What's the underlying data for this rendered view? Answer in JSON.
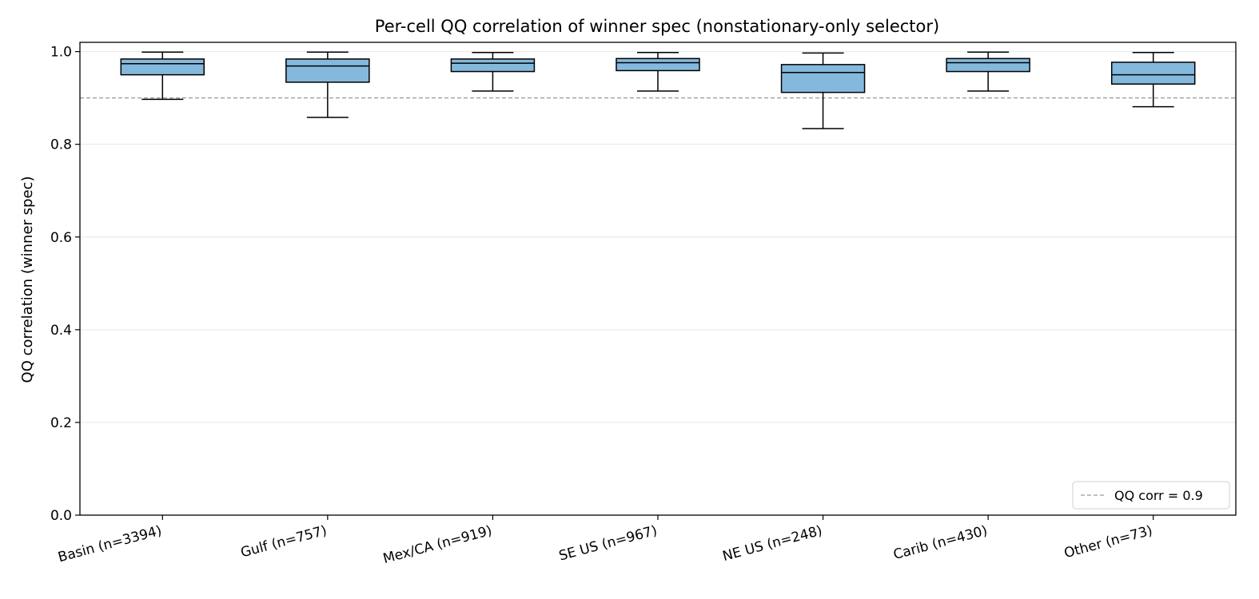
{
  "chart_data": {
    "type": "box",
    "title": "Per-cell QQ correlation of winner spec (nonstationary-only selector)",
    "xlabel": "",
    "ylabel": "QQ correlation (winner spec)",
    "ylim": [
      0.0,
      1.02
    ],
    "yticks": [
      0.0,
      0.2,
      0.4,
      0.6,
      0.8,
      1.0
    ],
    "ytick_labels": [
      "0.0",
      "0.2",
      "0.4",
      "0.6",
      "0.8",
      "1.0"
    ],
    "grid": "horizontal",
    "categories": [
      "Basin (n=3394)",
      "Gulf (n=757)",
      "Mex/CA (n=919)",
      "SE US (n=967)",
      "NE US (n=248)",
      "Carib (n=430)",
      "Other (n=73)"
    ],
    "boxes": [
      {
        "whisker_low": 0.897,
        "q1": 0.95,
        "median": 0.974,
        "q3": 0.984,
        "whisker_high": 0.999
      },
      {
        "whisker_low": 0.858,
        "q1": 0.934,
        "median": 0.969,
        "q3": 0.984,
        "whisker_high": 0.999
      },
      {
        "whisker_low": 0.915,
        "q1": 0.957,
        "median": 0.975,
        "q3": 0.984,
        "whisker_high": 0.998
      },
      {
        "whisker_low": 0.915,
        "q1": 0.959,
        "median": 0.976,
        "q3": 0.985,
        "whisker_high": 0.998
      },
      {
        "whisker_low": 0.834,
        "q1": 0.912,
        "median": 0.955,
        "q3": 0.972,
        "whisker_high": 0.997
      },
      {
        "whisker_low": 0.915,
        "q1": 0.957,
        "median": 0.976,
        "q3": 0.985,
        "whisker_high": 0.999
      },
      {
        "whisker_low": 0.881,
        "q1": 0.93,
        "median": 0.95,
        "q3": 0.977,
        "whisker_high": 0.998
      }
    ],
    "reference_line": {
      "value": 0.9,
      "label": "QQ corr = 0.9",
      "style": "dashed",
      "color": "#999999"
    },
    "legend": {
      "placement": "lower-right",
      "entries": [
        "QQ corr = 0.9"
      ]
    },
    "colors": {
      "box_fill": "#84b9dd",
      "box_edge": "#000000",
      "grid": "#e6e6e6"
    }
  }
}
